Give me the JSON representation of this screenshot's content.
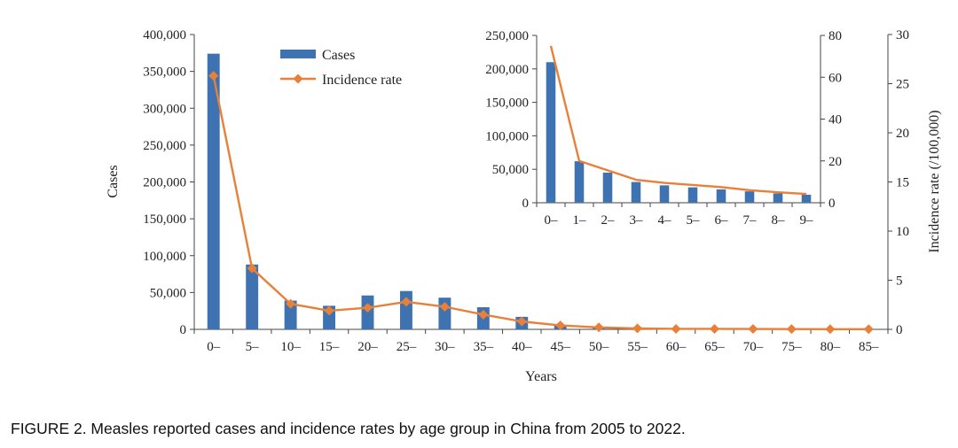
{
  "caption": "FIGURE 2. Measles reported cases and incidence rates by age group in China from 2005 to 2022.",
  "colors": {
    "bar": "#3e72b0",
    "line": "#e8803a",
    "axis": "#444444"
  },
  "chart_data": [
    {
      "type": "bar+line",
      "xlabel": "Years",
      "ylabel": "Cases",
      "y2label": "Incidence rate (/100,000)",
      "ylim": [
        0,
        400000
      ],
      "y2lim": [
        0,
        30
      ],
      "yticks": [
        "0",
        "50,000",
        "100,000",
        "150,000",
        "200,000",
        "250,000",
        "300,000",
        "350,000",
        "400,000"
      ],
      "y2ticks": [
        "0",
        "5",
        "10",
        "15",
        "20",
        "25",
        "30"
      ],
      "categories": [
        "0–",
        "5–",
        "10–",
        "15–",
        "20–",
        "25–",
        "30–",
        "35–",
        "40–",
        "45–",
        "50–",
        "55–",
        "60–",
        "65–",
        "70–",
        "75–",
        "80–",
        "85–"
      ],
      "series": [
        {
          "name": "Cases",
          "type": "bar",
          "axis": "left",
          "values": [
            374000,
            88000,
            39000,
            32000,
            46000,
            52000,
            43000,
            30000,
            17000,
            6000,
            3000,
            2000,
            1000,
            500,
            300,
            200,
            100,
            50
          ]
        },
        {
          "name": "Incidence rate",
          "type": "line",
          "axis": "right",
          "marker": "diamond",
          "values": [
            25.8,
            6.2,
            2.6,
            1.9,
            2.2,
            2.8,
            2.3,
            1.5,
            0.8,
            0.4,
            0.2,
            0.1,
            0.05,
            0.05,
            0.04,
            0.03,
            0.02,
            0.02
          ]
        }
      ],
      "legend": "top-left"
    },
    {
      "type": "bar+line",
      "inset": true,
      "ylim": [
        0,
        250000
      ],
      "y2lim": [
        0,
        80
      ],
      "yticks": [
        "0",
        "50,000",
        "100,000",
        "150,000",
        "200,000",
        "250,000"
      ],
      "y2ticks": [
        "0",
        "20",
        "40",
        "60",
        "80"
      ],
      "categories": [
        "0–",
        "1–",
        "2–",
        "3–",
        "4–",
        "5–",
        "6–",
        "7–",
        "8–",
        "9–"
      ],
      "series": [
        {
          "type": "bar",
          "axis": "left",
          "values": [
            210000,
            62000,
            45000,
            31000,
            26000,
            23000,
            20000,
            17000,
            14000,
            12000
          ]
        },
        {
          "type": "line",
          "axis": "right",
          "values": [
            75,
            20,
            15.5,
            11,
            9.5,
            8.5,
            7.5,
            6,
            5,
            4.2
          ]
        }
      ]
    }
  ]
}
